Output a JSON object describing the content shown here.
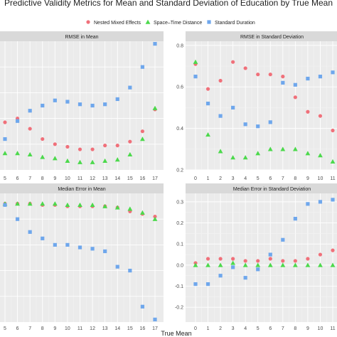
{
  "title": "Predictive Validity Metrics for Mean and Standard Deviation of Education by True Mean",
  "xlabel": "True Mean",
  "colors": {
    "nested": "#f0707a",
    "spacetime": "#4cd94c",
    "standard": "#6fa7ec"
  },
  "legend": {
    "placement": "top",
    "items": [
      {
        "key": "nested",
        "label": "Nested Mixed Effects",
        "shape": "circle"
      },
      {
        "key": "spacetime",
        "label": "Space–Time Distance",
        "shape": "triangle"
      },
      {
        "key": "standard",
        "label": "Standard Duration",
        "shape": "square"
      }
    ]
  },
  "chart_data": [
    {
      "type": "scatter",
      "title": "RMSE in Mean",
      "x": [
        5,
        6,
        7,
        8,
        9,
        10,
        11,
        12,
        13,
        14,
        15,
        16,
        17
      ],
      "x_ticks": [
        "5",
        "6",
        "7",
        "8",
        "9",
        "10",
        "11",
        "12",
        "13",
        "14",
        "15",
        "16",
        "17"
      ],
      "y_ticks": [],
      "ylim": [
        0,
        1
      ],
      "grid": true,
      "series": [
        {
          "key": "nested",
          "name": "Nested Mixed Effects",
          "values": [
            0.37,
            0.4,
            0.32,
            0.24,
            0.2,
            0.18,
            0.16,
            0.16,
            0.19,
            0.19,
            0.22,
            0.3,
            0.47
          ]
        },
        {
          "key": "spacetime",
          "name": "Space–Time Distance",
          "values": [
            0.13,
            0.13,
            0.12,
            0.1,
            0.09,
            0.07,
            0.06,
            0.06,
            0.07,
            0.08,
            0.12,
            0.24,
            0.48
          ]
        },
        {
          "key": "standard",
          "name": "Standard Duration",
          "values": [
            0.24,
            0.38,
            0.46,
            0.5,
            0.54,
            0.53,
            0.51,
            0.5,
            0.51,
            0.55,
            0.64,
            0.8,
            0.98
          ]
        }
      ]
    },
    {
      "type": "scatter",
      "title": "RMSE in Standard Deviation",
      "x": [
        0,
        1,
        2,
        3,
        4,
        5,
        6,
        7,
        8,
        9,
        10,
        11
      ],
      "x_ticks": [
        "0",
        "1",
        "2",
        "3",
        "4",
        "5",
        "6",
        "7",
        "8",
        "9",
        "10",
        "11"
      ],
      "y_ticks": [
        "0.2",
        "0.4",
        "0.6",
        "0.8"
      ],
      "y_tick_values": [
        0.2,
        0.4,
        0.6,
        0.8
      ],
      "ylim": [
        0.2,
        0.82
      ],
      "grid": true,
      "series": [
        {
          "key": "nested",
          "name": "Nested Mixed Effects",
          "values": [
            0.71,
            0.59,
            0.63,
            0.72,
            0.69,
            0.66,
            0.66,
            0.65,
            0.55,
            0.48,
            0.46,
            0.39
          ]
        },
        {
          "key": "spacetime",
          "name": "Space–Time Distance",
          "values": [
            0.72,
            0.37,
            0.29,
            0.26,
            0.26,
            0.28,
            0.3,
            0.3,
            0.3,
            0.28,
            0.27,
            0.24
          ]
        },
        {
          "key": "standard",
          "name": "Standard Duration",
          "values": [
            0.65,
            0.52,
            0.46,
            0.5,
            0.42,
            0.41,
            0.43,
            0.62,
            0.61,
            0.64,
            0.65,
            0.67
          ]
        }
      ]
    },
    {
      "type": "scatter",
      "title": "Median Error in Mean",
      "x": [
        5,
        6,
        7,
        8,
        9,
        10,
        11,
        12,
        13,
        14,
        15,
        16,
        17
      ],
      "x_ticks": [
        "5",
        "6",
        "7",
        "8",
        "9",
        "10",
        "11",
        "12",
        "13",
        "14",
        "15",
        "16",
        "17"
      ],
      "y_ticks": [],
      "ylim": [
        0,
        1
      ],
      "grid": true,
      "series": [
        {
          "key": "nested",
          "name": "Nested Mixed Effects",
          "values": [
            0.92,
            0.92,
            0.92,
            0.91,
            0.91,
            0.9,
            0.9,
            0.9,
            0.9,
            0.89,
            0.86,
            0.84,
            0.82
          ]
        },
        {
          "key": "spacetime",
          "name": "Space–Time Distance",
          "values": [
            0.92,
            0.92,
            0.92,
            0.92,
            0.92,
            0.91,
            0.91,
            0.91,
            0.9,
            0.89,
            0.88,
            0.85,
            0.8
          ]
        },
        {
          "key": "standard",
          "name": "Standard Duration",
          "values": [
            0.91,
            0.8,
            0.7,
            0.65,
            0.6,
            0.6,
            0.58,
            0.57,
            0.55,
            0.43,
            0.4,
            0.12,
            0.02
          ]
        }
      ]
    },
    {
      "type": "scatter",
      "title": "Median Error in Standard Deviation",
      "x": [
        0,
        1,
        2,
        3,
        4,
        5,
        6,
        7,
        8,
        9,
        10,
        11
      ],
      "x_ticks": [
        "0",
        "1",
        "2",
        "3",
        "4",
        "5",
        "6",
        "7",
        "8",
        "9",
        "10",
        "11"
      ],
      "y_ticks": [
        "-0.2",
        "-0.1",
        "0.0",
        "0.1",
        "0.2",
        "0.3"
      ],
      "y_tick_values": [
        -0.2,
        -0.1,
        0.0,
        0.1,
        0.2,
        0.3
      ],
      "ylim": [
        -0.27,
        0.34
      ],
      "grid": true,
      "series": [
        {
          "key": "nested",
          "name": "Nested Mixed Effects",
          "values": [
            0.01,
            0.03,
            0.03,
            0.03,
            0.02,
            0.02,
            0.03,
            0.02,
            0.02,
            0.03,
            0.05,
            0.07
          ]
        },
        {
          "key": "spacetime",
          "name": "Space–Time Distance",
          "values": [
            0.0,
            0.0,
            0.0,
            0.01,
            0.0,
            0.0,
            0.0,
            0.0,
            0.0,
            0.0,
            0.0,
            0.0
          ]
        },
        {
          "key": "standard",
          "name": "Standard Duration",
          "values": [
            -0.09,
            -0.09,
            -0.05,
            -0.01,
            -0.06,
            -0.02,
            0.05,
            0.12,
            0.22,
            0.29,
            0.3,
            0.31
          ]
        }
      ]
    }
  ]
}
